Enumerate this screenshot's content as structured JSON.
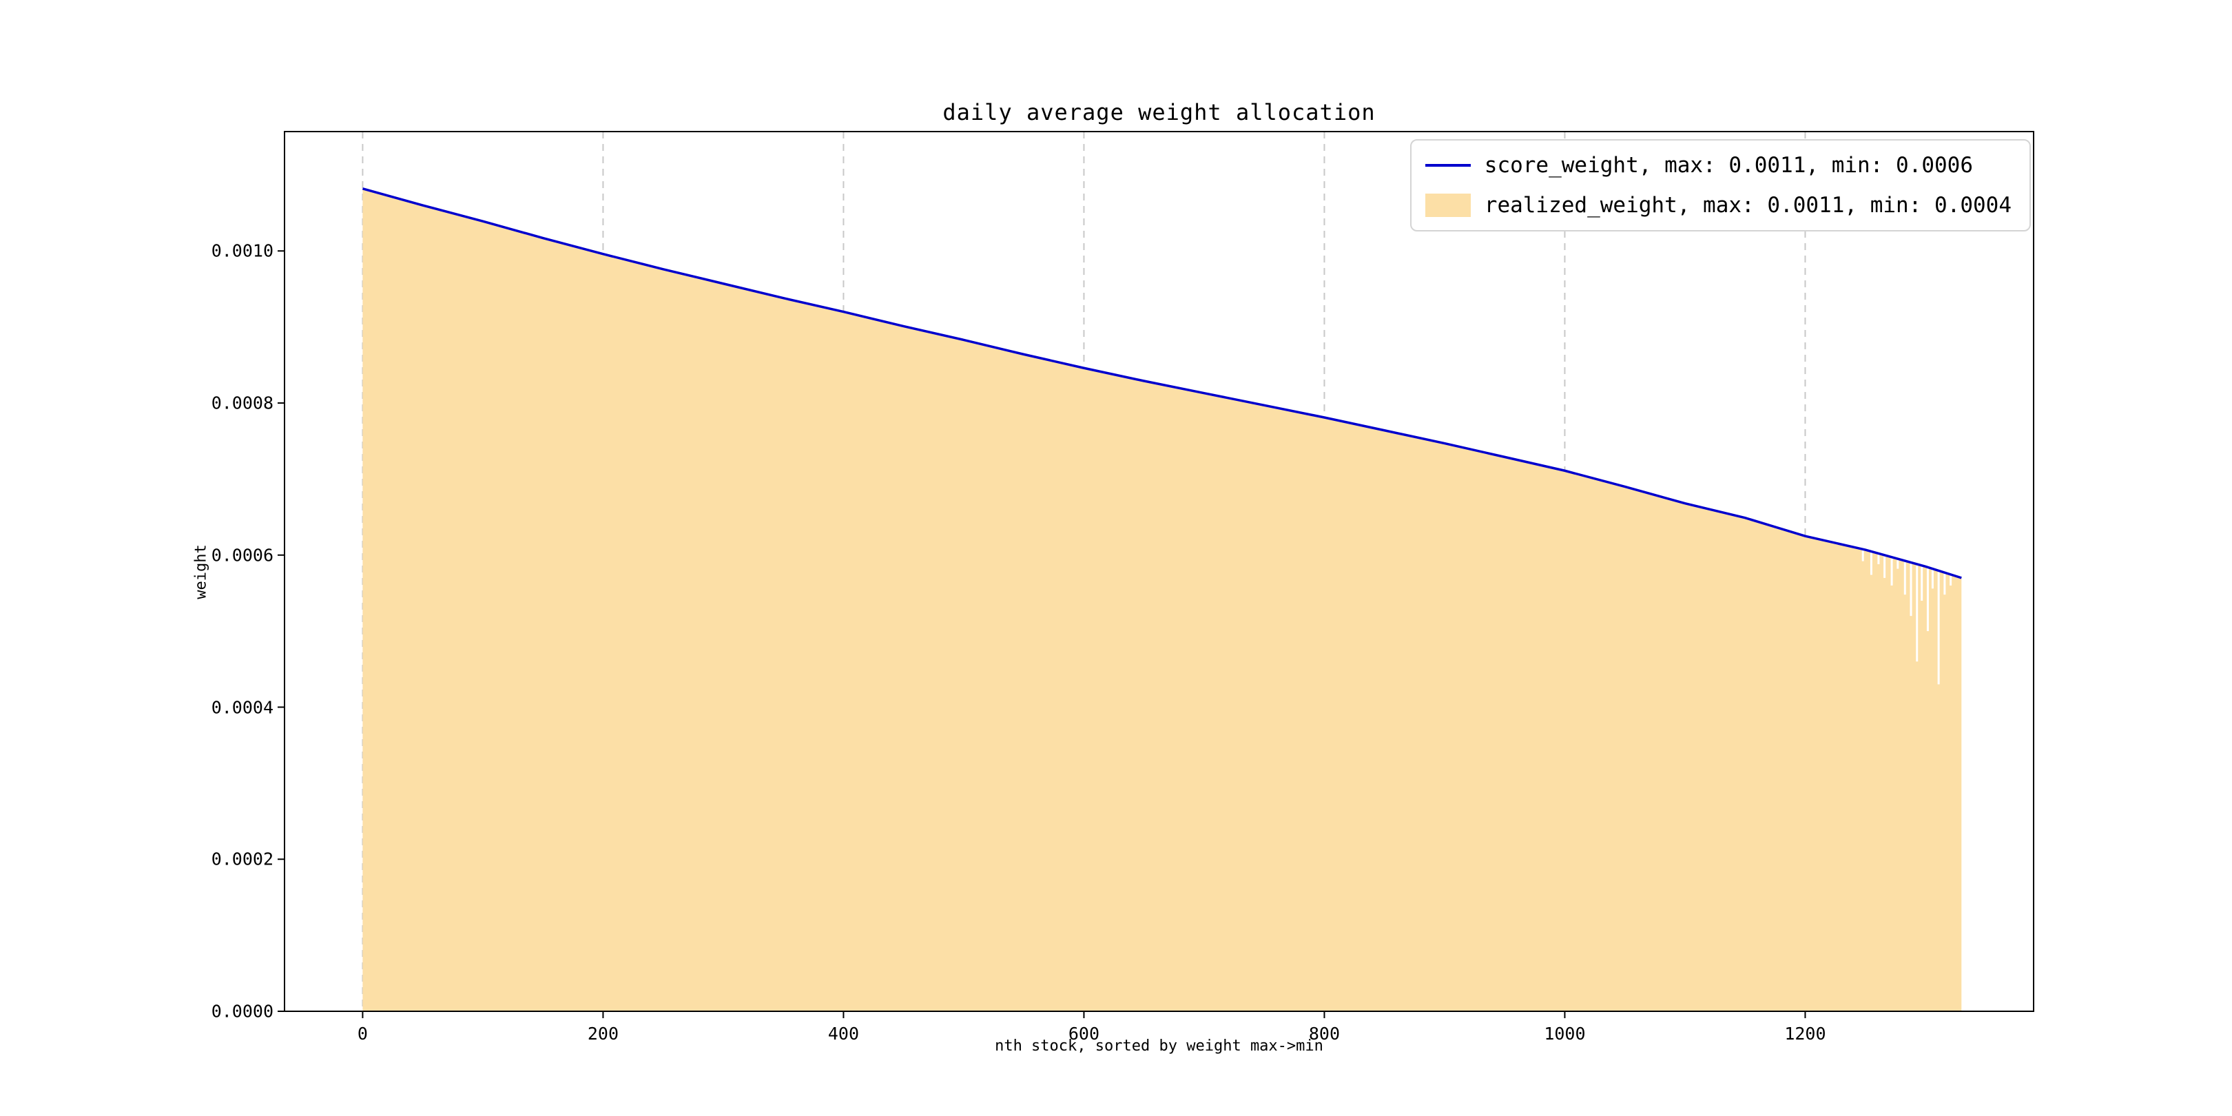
{
  "figure": {
    "title": "daily average weight allocation",
    "xlabel": "nth stock, sorted by weight max->min",
    "ylabel": "weight"
  },
  "legend": {
    "items": [
      {
        "swatch": "line",
        "color": "#0000cd",
        "label": "score_weight, max: 0.0011, min: 0.0006"
      },
      {
        "swatch": "patch",
        "color": "#fcdfa6",
        "label": "realized_weight, max: 0.0011, min: 0.0004"
      }
    ],
    "position": "upper right"
  },
  "chart_data": {
    "type": "area",
    "title": "daily average weight allocation",
    "xlabel": "nth stock, sorted by weight max->min",
    "ylabel": "weight",
    "xlim": [
      -65,
      1390
    ],
    "ylim": [
      0,
      0.001157
    ],
    "xticks": [
      0,
      200,
      400,
      600,
      800,
      1000,
      1200
    ],
    "xticklabels": [
      "0",
      "200",
      "400",
      "600",
      "800",
      "1000",
      "1200"
    ],
    "yticks": [
      0,
      0.0002,
      0.0004,
      0.0006,
      0.0008,
      0.001
    ],
    "yticklabels": [
      "0.0000",
      "0.0002",
      "0.0004",
      "0.0006",
      "0.0008",
      "0.0010"
    ],
    "grid": {
      "axis": "x",
      "style": "dashed",
      "color": "#c8c8c8"
    },
    "x": [
      0,
      50,
      100,
      150,
      200,
      250,
      300,
      350,
      400,
      450,
      500,
      550,
      600,
      650,
      700,
      750,
      800,
      850,
      900,
      950,
      1000,
      1050,
      1100,
      1150,
      1200,
      1250,
      1300,
      1330
    ],
    "series": [
      {
        "name": "score_weight",
        "kind": "line",
        "color": "#0000cd",
        "max": 0.0011,
        "min": 0.0006,
        "y": [
          0.001082,
          0.00106,
          0.001039,
          0.001017,
          0.000996,
          0.000976,
          0.000957,
          0.000938,
          0.00092,
          0.000901,
          0.000883,
          0.000864,
          0.000846,
          0.000829,
          0.000813,
          0.000797,
          0.000781,
          0.000764,
          0.000747,
          0.000729,
          0.000711,
          0.00069,
          0.000668,
          0.000649,
          0.000625,
          0.000607,
          0.000585,
          0.00057
        ]
      },
      {
        "name": "realized_weight",
        "kind": "area",
        "color": "#fcdfa6",
        "max": 0.0011,
        "min": 0.0004,
        "y": [
          0.001082,
          0.00106,
          0.001039,
          0.001017,
          0.000996,
          0.000976,
          0.000957,
          0.000938,
          0.00092,
          0.000901,
          0.000883,
          0.000864,
          0.000846,
          0.000829,
          0.000813,
          0.000797,
          0.000781,
          0.000764,
          0.000747,
          0.000729,
          0.000711,
          0.00069,
          0.000668,
          0.000649,
          0.000625,
          0.000607,
          0.000585,
          0.00057
        ],
        "dips": [
          {
            "x": 1248,
            "y": 0.000592
          },
          {
            "x": 1255,
            "y": 0.000574
          },
          {
            "x": 1261,
            "y": 0.000588
          },
          {
            "x": 1266,
            "y": 0.00057
          },
          {
            "x": 1272,
            "y": 0.00056
          },
          {
            "x": 1277,
            "y": 0.000582
          },
          {
            "x": 1283,
            "y": 0.000548
          },
          {
            "x": 1288,
            "y": 0.00052
          },
          {
            "x": 1293,
            "y": 0.00046
          },
          {
            "x": 1297,
            "y": 0.00054
          },
          {
            "x": 1302,
            "y": 0.0005
          },
          {
            "x": 1306,
            "y": 0.000556
          },
          {
            "x": 1311,
            "y": 0.00043
          },
          {
            "x": 1316,
            "y": 0.000548
          },
          {
            "x": 1321,
            "y": 0.00056
          }
        ]
      }
    ]
  }
}
